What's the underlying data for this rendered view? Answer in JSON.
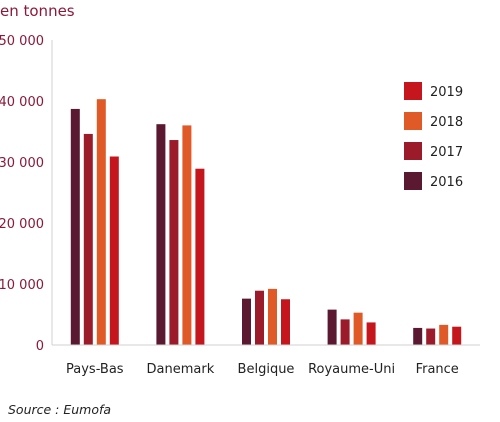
{
  "chart_data": {
    "type": "bar",
    "unit_label": "en tonnes",
    "categories": [
      "Pays-Bas",
      "Danemark",
      "Belgique",
      "Royaume-Uni",
      "France"
    ],
    "series": [
      {
        "name": "2016",
        "color": "#5a1930",
        "values": [
          38700,
          36200,
          7600,
          5800,
          2800
        ]
      },
      {
        "name": "2017",
        "color": "#9b1b2a",
        "values": [
          34600,
          33600,
          8900,
          4200,
          2700
        ]
      },
      {
        "name": "2018",
        "color": "#e05a28",
        "values": [
          40300,
          36000,
          9200,
          5300,
          3300
        ]
      },
      {
        "name": "2019",
        "color": "#c4161c",
        "values": [
          30900,
          28900,
          7500,
          3700,
          3000
        ]
      }
    ],
    "ylim": [
      0,
      50000
    ],
    "yticks": [
      0,
      10000,
      20000,
      30000,
      40000,
      50000
    ],
    "ytick_labels": [
      "0",
      "10 000",
      "20 000",
      "30 000",
      "40 000",
      "50 000"
    ],
    "legend_order": [
      "2019",
      "2018",
      "2017",
      "2016"
    ],
    "legend_position": "right",
    "grid": false,
    "source": "Source : Eumofa"
  }
}
